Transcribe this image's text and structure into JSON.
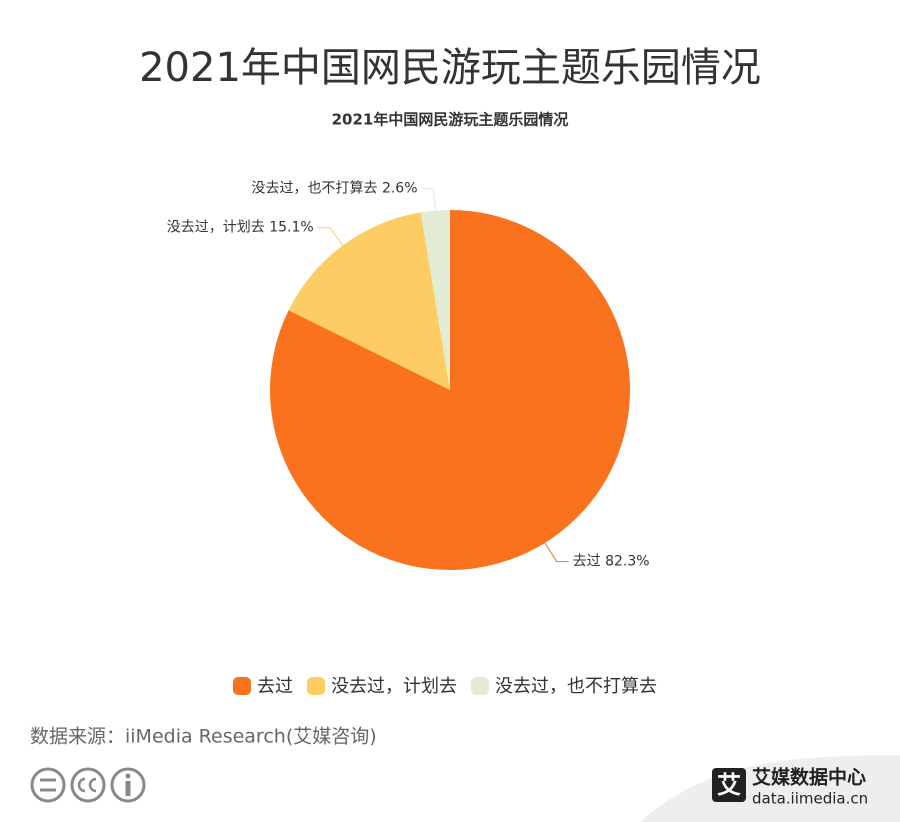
{
  "heading": "2021年中国网民游玩主题乐园情况",
  "chart_data": {
    "type": "pie",
    "title": "2021年中国网民游玩主题乐园情况",
    "categories": [
      "去过",
      "没去过，计划去",
      "没去过，也不打算去"
    ],
    "values": [
      82.3,
      15.1,
      2.6
    ],
    "value_labels": [
      "82.3%",
      "15.1%",
      "2.6%"
    ],
    "colors": [
      "#fb721e",
      "#fdcd63",
      "#e2ebd3"
    ]
  },
  "source": "数据来源：iiMedia Research(艾媒咨询)",
  "brand": {
    "name": "艾媒数据中心",
    "url": "data.iimedia.cn",
    "mark": "艾"
  }
}
